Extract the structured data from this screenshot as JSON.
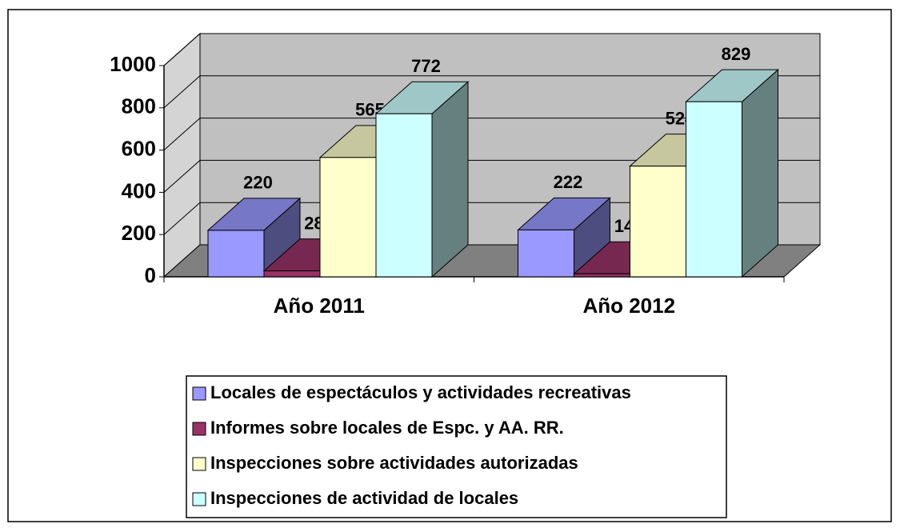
{
  "chart_data": {
    "type": "bar3d",
    "categories": [
      "Año 2011",
      "Año 2012"
    ],
    "series": [
      {
        "name": "Locales de espectáculos y actividades recreativas",
        "color": "#9999ff",
        "values": [
          220,
          222
        ]
      },
      {
        "name": "Informes sobre locales de Espc. y AA. RR.",
        "color": "#993366",
        "values": [
          28,
          14
        ]
      },
      {
        "name": "Inspecciones sobre actividades autorizadas",
        "color": "#ffffcc",
        "values": [
          565,
          524
        ]
      },
      {
        "name": "Inspecciones de actividad de locales",
        "color": "#ccffff",
        "values": [
          772,
          829
        ]
      }
    ],
    "ylim": [
      0,
      1000
    ],
    "yticks": [
      0,
      200,
      400,
      600,
      800,
      1000
    ],
    "grid": true
  }
}
